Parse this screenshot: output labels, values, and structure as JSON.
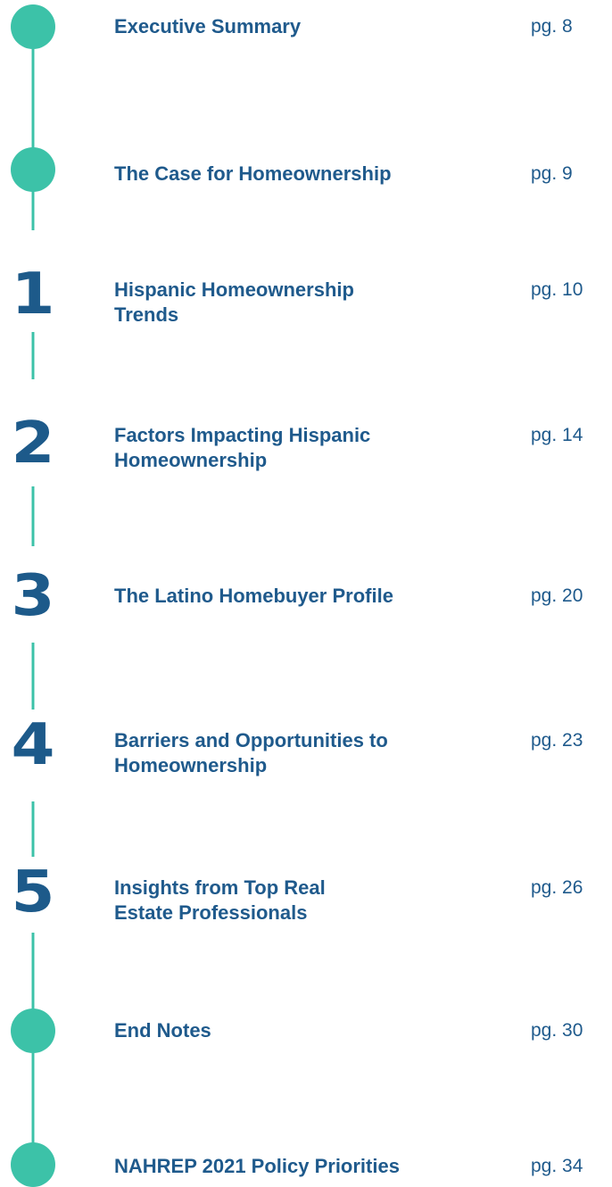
{
  "items": [
    {
      "title_lines": [
        "Executive Summary"
      ],
      "page": "pg. 8"
    },
    {
      "title_lines": [
        "The Case for Homeownership"
      ],
      "page": "pg. 9"
    },
    {
      "marker": "1",
      "title_lines": [
        "Hispanic Homeownership",
        "Trends"
      ],
      "page": "pg. 10"
    },
    {
      "marker": "2",
      "title_lines": [
        "Factors Impacting Hispanic",
        "Homeownership"
      ],
      "page": "pg. 14"
    },
    {
      "marker": "3",
      "title_lines": [
        "The Latino Homebuyer Profile"
      ],
      "page": "pg. 20"
    },
    {
      "marker": "4",
      "title_lines": [
        "Barriers and Opportunities to",
        "Homeownership"
      ],
      "page": "pg. 23"
    },
    {
      "marker": "5",
      "title_lines": [
        "Insights from Top Real",
        "Estate Professionals"
      ],
      "page": "pg. 26"
    },
    {
      "title_lines": [
        "End Notes"
      ],
      "page": "pg. 30"
    },
    {
      "title_lines": [
        "NAHREP 2021 Policy Priorities"
      ],
      "page": "pg. 34"
    }
  ]
}
